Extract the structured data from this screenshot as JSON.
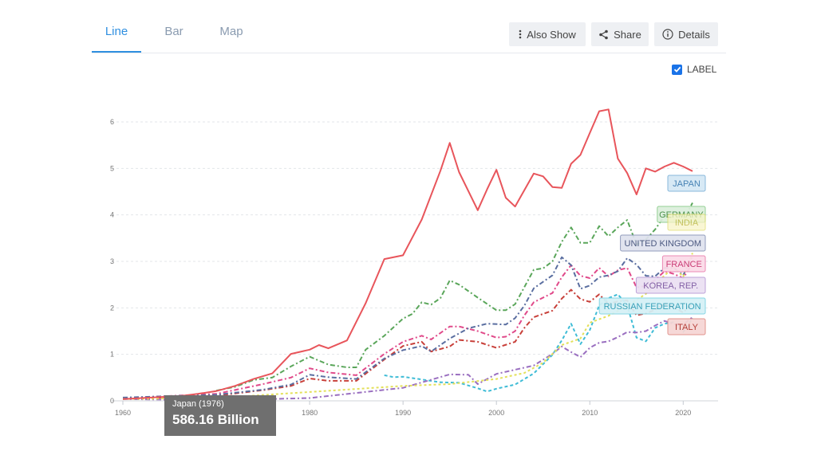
{
  "tabs": [
    {
      "label": "Line",
      "active": true
    },
    {
      "label": "Bar",
      "active": false
    },
    {
      "label": "Map",
      "active": false
    }
  ],
  "toolbar": {
    "also_show_label": "Also Show",
    "share_label": "Share",
    "details_label": "Details"
  },
  "label_toggle": {
    "label": "LABEL",
    "checked": true
  },
  "tooltip": {
    "title": "Japan (1976)",
    "value": "586.16 Billion"
  },
  "chart_data": {
    "type": "line",
    "ylim": [
      0,
      6.5
    ],
    "xlim": [
      1959,
      2023
    ],
    "x_ticks": [
      1960,
      1970,
      1980,
      1990,
      2000,
      2010,
      2020
    ],
    "y_ticks": [
      0,
      1,
      2,
      3,
      4,
      5,
      6
    ],
    "grid": true,
    "series": [
      {
        "name": "JAPAN",
        "color": "#e8555b",
        "dash": "none",
        "x": [
          1960,
          1962,
          1964,
          1966,
          1968,
          1970,
          1972,
          1974,
          1976,
          1978,
          1980,
          1981,
          1982,
          1984,
          1986,
          1988,
          1990,
          1992,
          1994,
          1995,
          1996,
          1998,
          1999,
          2000,
          2001,
          2002,
          2004,
          2005,
          2006,
          2007,
          2008,
          2009,
          2010,
          2011,
          2012,
          2013,
          2014,
          2015,
          2016,
          2017,
          2018,
          2019,
          2020,
          2021
        ],
        "y": [
          0.04,
          0.06,
          0.08,
          0.1,
          0.15,
          0.21,
          0.32,
          0.47,
          0.59,
          1.01,
          1.1,
          1.2,
          1.13,
          1.3,
          2.1,
          3.05,
          3.13,
          3.9,
          4.95,
          5.55,
          4.92,
          4.1,
          4.55,
          4.97,
          4.37,
          4.18,
          4.89,
          4.83,
          4.6,
          4.58,
          5.1,
          5.29,
          5.76,
          6.23,
          6.27,
          5.21,
          4.9,
          4.44,
          5.0,
          4.93,
          5.04,
          5.12,
          5.04,
          4.94
        ]
      },
      {
        "name": "GERMANY",
        "color": "#5aa65a",
        "dash": "6 3 2 3",
        "x": [
          1970,
          1972,
          1974,
          1976,
          1978,
          1980,
          1982,
          1984,
          1985,
          1986,
          1988,
          1990,
          1991,
          1992,
          1993,
          1994,
          1995,
          1996,
          1998,
          2000,
          2001,
          2002,
          2004,
          2005,
          2006,
          2007,
          2008,
          2009,
          2010,
          2011,
          2012,
          2013,
          2014,
          2015,
          2016,
          2017,
          2018,
          2019,
          2020,
          2021
        ],
        "y": [
          0.22,
          0.3,
          0.45,
          0.5,
          0.74,
          0.95,
          0.78,
          0.72,
          0.72,
          1.1,
          1.4,
          1.77,
          1.87,
          2.12,
          2.07,
          2.21,
          2.59,
          2.5,
          2.22,
          1.95,
          1.95,
          2.08,
          2.82,
          2.85,
          3.0,
          3.42,
          3.73,
          3.4,
          3.4,
          3.76,
          3.54,
          3.73,
          3.89,
          3.36,
          3.47,
          3.69,
          3.98,
          3.89,
          3.89,
          4.26
        ]
      },
      {
        "name": "INDIA",
        "color": "#e3e05a",
        "dash": "3 3",
        "x": [
          1960,
          1970,
          1980,
          1990,
          1995,
          2000,
          2003,
          2005,
          2007,
          2009,
          2010,
          2012,
          2014,
          2016,
          2018,
          2019,
          2020,
          2021
        ],
        "y": [
          0.04,
          0.06,
          0.19,
          0.32,
          0.36,
          0.47,
          0.6,
          0.82,
          1.2,
          1.34,
          1.68,
          1.83,
          2.04,
          2.3,
          2.7,
          2.87,
          2.67,
          3.18
        ]
      },
      {
        "name": "UNITED KINGDOM",
        "color": "#5a6ea0",
        "dash": "6 3 2 3",
        "x": [
          1960,
          1970,
          1975,
          1978,
          1980,
          1982,
          1985,
          1988,
          1990,
          1992,
          1993,
          1995,
          1997,
          1999,
          2001,
          2002,
          2003,
          2004,
          2006,
          2007,
          2008,
          2009,
          2010,
          2011,
          2012,
          2013,
          2014,
          2015,
          2016,
          2017,
          2018,
          2019,
          2020,
          2021
        ],
        "y": [
          0.07,
          0.13,
          0.24,
          0.35,
          0.56,
          0.51,
          0.47,
          0.91,
          1.09,
          1.18,
          1.06,
          1.34,
          1.56,
          1.66,
          1.64,
          1.78,
          2.05,
          2.42,
          2.7,
          3.09,
          2.92,
          2.41,
          2.48,
          2.66,
          2.7,
          2.79,
          3.07,
          2.93,
          2.69,
          2.68,
          2.86,
          2.86,
          2.7,
          3.12
        ]
      },
      {
        "name": "FRANCE",
        "color": "#e04a8a",
        "dash": "6 3 2 3",
        "x": [
          1960,
          1970,
          1975,
          1978,
          1980,
          1982,
          1985,
          1988,
          1990,
          1992,
          1993,
          1995,
          1996,
          1998,
          2000,
          2001,
          2002,
          2003,
          2004,
          2006,
          2007,
          2008,
          2009,
          2010,
          2011,
          2012,
          2013,
          2014,
          2015,
          2016,
          2017,
          2018,
          2019,
          2020,
          2021
        ],
        "y": [
          0.06,
          0.15,
          0.36,
          0.5,
          0.7,
          0.61,
          0.55,
          1.01,
          1.27,
          1.4,
          1.32,
          1.6,
          1.6,
          1.5,
          1.36,
          1.38,
          1.5,
          1.84,
          2.12,
          2.32,
          2.66,
          2.92,
          2.69,
          2.64,
          2.86,
          2.68,
          2.81,
          2.86,
          2.44,
          2.47,
          2.6,
          2.79,
          2.73,
          2.64,
          2.96
        ]
      },
      {
        "name": "KOREA, REP.",
        "color": "#9a6fc0",
        "dash": "6 3 2 3",
        "x": [
          1960,
          1970,
          1980,
          1990,
          1995,
          1997,
          1998,
          2000,
          2004,
          2006,
          2007,
          2008,
          2009,
          2010,
          2011,
          2012,
          2013,
          2014,
          2015,
          2016,
          2017,
          2018,
          2019,
          2020,
          2021
        ],
        "y": [
          0.04,
          0.01,
          0.06,
          0.28,
          0.57,
          0.56,
          0.36,
          0.58,
          0.76,
          1.01,
          1.17,
          1.05,
          0.94,
          1.14,
          1.25,
          1.28,
          1.37,
          1.48,
          1.47,
          1.5,
          1.62,
          1.72,
          1.65,
          1.64,
          1.8
        ]
      },
      {
        "name": "RUSSIAN FEDERATION",
        "color": "#3fbcd6",
        "dash": "4 3",
        "x": [
          1988,
          1989,
          1990,
          1992,
          1994,
          1996,
          1998,
          1999,
          2000,
          2002,
          2004,
          2006,
          2007,
          2008,
          2009,
          2010,
          2011,
          2012,
          2013,
          2014,
          2015,
          2016,
          2017,
          2018,
          2019,
          2020,
          2021
        ],
        "y": [
          0.55,
          0.51,
          0.52,
          0.46,
          0.4,
          0.39,
          0.27,
          0.2,
          0.26,
          0.35,
          0.59,
          0.99,
          1.3,
          1.66,
          1.22,
          1.52,
          2.05,
          2.21,
          2.29,
          2.06,
          1.36,
          1.28,
          1.57,
          1.66,
          1.69,
          1.48,
          1.78
        ]
      },
      {
        "name": "ITALY",
        "color": "#c8403a",
        "dash": "6 3 2 3",
        "x": [
          1960,
          1970,
          1975,
          1978,
          1980,
          1982,
          1985,
          1988,
          1990,
          1992,
          1993,
          1995,
          1996,
          1998,
          2000,
          2002,
          2003,
          2004,
          2006,
          2007,
          2008,
          2009,
          2010,
          2011,
          2012,
          2013,
          2014,
          2015,
          2016,
          2017,
          2018,
          2019,
          2020,
          2021
        ],
        "y": [
          0.04,
          0.11,
          0.23,
          0.32,
          0.48,
          0.43,
          0.43,
          0.89,
          1.18,
          1.27,
          1.06,
          1.17,
          1.31,
          1.27,
          1.14,
          1.27,
          1.57,
          1.8,
          1.94,
          2.2,
          2.39,
          2.19,
          2.13,
          2.29,
          2.09,
          2.14,
          2.16,
          1.84,
          1.88,
          1.96,
          2.09,
          2.01,
          1.9,
          2.1
        ]
      }
    ]
  }
}
